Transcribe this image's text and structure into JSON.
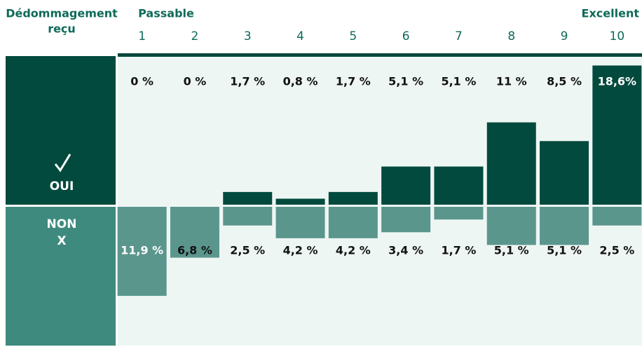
{
  "chart_data": {
    "type": "diverging-bar",
    "row_header": [
      "Dédommagement",
      "reçu"
    ],
    "scale_low": "Passable",
    "scale_high": "Excellent",
    "categories": [
      "1",
      "2",
      "3",
      "4",
      "5",
      "6",
      "7",
      "8",
      "9",
      "10"
    ],
    "ylim": [
      -20,
      20
    ],
    "series": [
      {
        "name": "OUI",
        "color": "#024a3d",
        "direction": "up",
        "values": [
          0,
          0,
          1.7,
          0.8,
          1.7,
          5.1,
          5.1,
          11,
          8.5,
          18.6
        ],
        "value_labels": [
          "0 %",
          "0 %",
          "1,7 %",
          "0,8 %",
          "1,7 %",
          "5,1 %",
          "5,1 %",
          "11 %",
          "8,5 %",
          "18,6%"
        ]
      },
      {
        "name": "NON",
        "symbol": "X",
        "color": "#5b968d",
        "direction": "down",
        "values": [
          11.9,
          6.8,
          2.5,
          4.2,
          4.2,
          3.4,
          1.7,
          5.1,
          5.1,
          2.5
        ],
        "value_labels": [
          "11,9 %",
          "6,8 %",
          "2,5 %",
          "4,2 %",
          "4,2 %",
          "3,4 %",
          "1,7 %",
          "5,1 %",
          "5,1 %",
          "2,5 %"
        ]
      }
    ]
  }
}
